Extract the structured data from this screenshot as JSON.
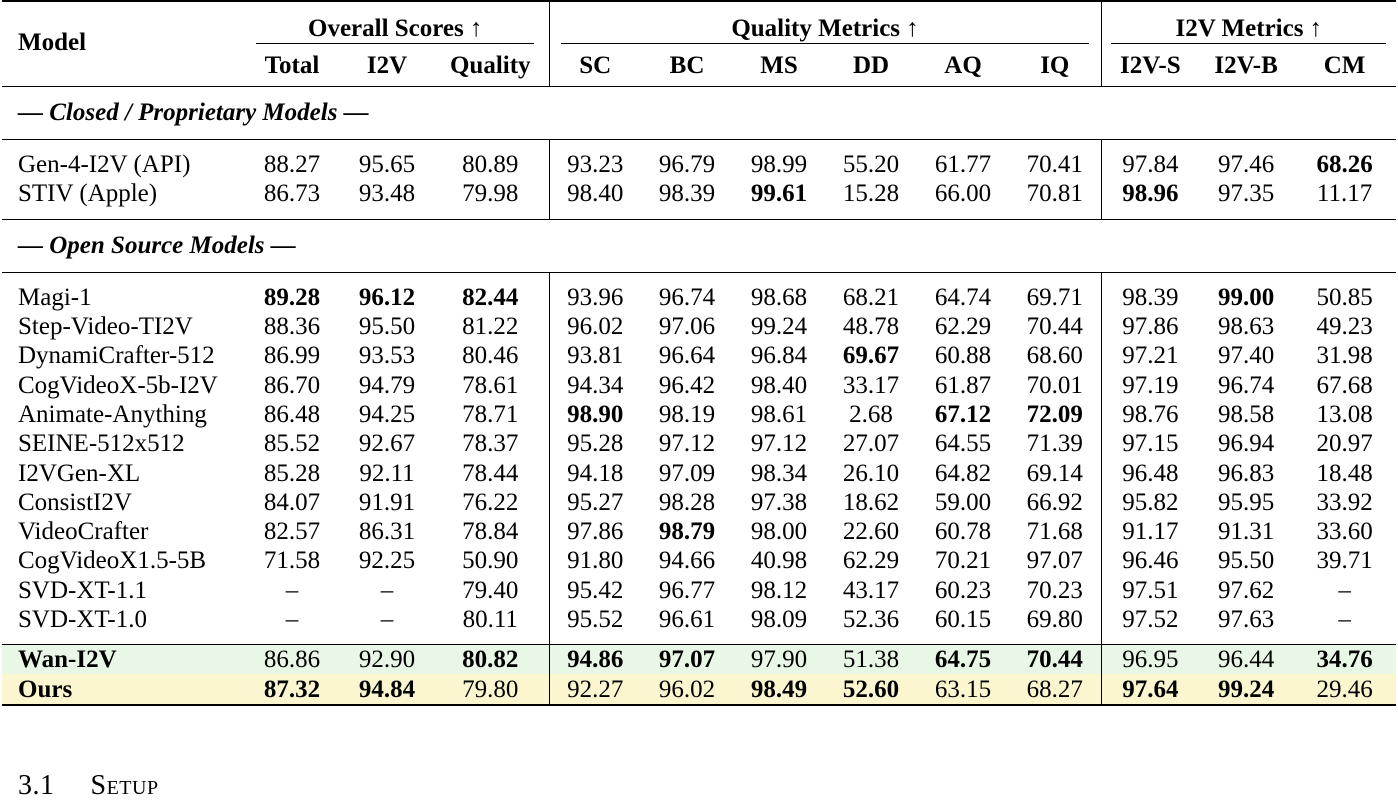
{
  "table": {
    "model_header": "Model",
    "groups": [
      {
        "label": "Overall Scores ↑"
      },
      {
        "label": "Quality Metrics ↑"
      },
      {
        "label": "I2V Metrics ↑"
      }
    ],
    "columns": [
      "Total",
      "I2V",
      "Quality",
      "SC",
      "BC",
      "MS",
      "DD",
      "AQ",
      "IQ",
      "I2V-S",
      "I2V-B",
      "CM"
    ],
    "sections": [
      {
        "title": "— Closed / Proprietary Models —",
        "rows": [
          {
            "model": "Gen-4-I2V (API)",
            "values": [
              "88.27",
              "95.65",
              "80.89",
              "93.23",
              "96.79",
              "98.99",
              "55.20",
              "61.77",
              "70.41",
              "97.84",
              "97.46",
              "68.26"
            ]
          },
          {
            "model": "STIV (Apple)",
            "values": [
              "86.73",
              "93.48",
              "79.98",
              "98.40",
              "98.39",
              "99.61",
              "15.28",
              "66.00",
              "70.81",
              "98.96",
              "97.35",
              "11.17"
            ]
          }
        ]
      },
      {
        "title": "— Open Source Models —",
        "rows": [
          {
            "model": "Magi-1",
            "values": [
              "89.28",
              "96.12",
              "82.44",
              "93.96",
              "96.74",
              "98.68",
              "68.21",
              "64.74",
              "69.71",
              "98.39",
              "99.00",
              "50.85"
            ]
          },
          {
            "model": "Step-Video-TI2V",
            "values": [
              "88.36",
              "95.50",
              "81.22",
              "96.02",
              "97.06",
              "99.24",
              "48.78",
              "62.29",
              "70.44",
              "97.86",
              "98.63",
              "49.23"
            ]
          },
          {
            "model": "DynamiCrafter-512",
            "values": [
              "86.99",
              "93.53",
              "80.46",
              "93.81",
              "96.64",
              "96.84",
              "69.67",
              "60.88",
              "68.60",
              "97.21",
              "97.40",
              "31.98"
            ]
          },
          {
            "model": "CogVideoX-5b-I2V",
            "values": [
              "86.70",
              "94.79",
              "78.61",
              "94.34",
              "96.42",
              "98.40",
              "33.17",
              "61.87",
              "70.01",
              "97.19",
              "96.74",
              "67.68"
            ]
          },
          {
            "model": "Animate-Anything",
            "values": [
              "86.48",
              "94.25",
              "78.71",
              "98.90",
              "98.19",
              "98.61",
              "2.68",
              "67.12",
              "72.09",
              "98.76",
              "98.58",
              "13.08"
            ]
          },
          {
            "model": "SEINE-512x512",
            "values": [
              "85.52",
              "92.67",
              "78.37",
              "95.28",
              "97.12",
              "97.12",
              "27.07",
              "64.55",
              "71.39",
              "97.15",
              "96.94",
              "20.97"
            ]
          },
          {
            "model": "I2VGen-XL",
            "values": [
              "85.28",
              "92.11",
              "78.44",
              "94.18",
              "97.09",
              "98.34",
              "26.10",
              "64.82",
              "69.14",
              "96.48",
              "96.83",
              "18.48"
            ]
          },
          {
            "model": "ConsistI2V",
            "values": [
              "84.07",
              "91.91",
              "76.22",
              "95.27",
              "98.28",
              "97.38",
              "18.62",
              "59.00",
              "66.92",
              "95.82",
              "95.95",
              "33.92"
            ]
          },
          {
            "model": "VideoCrafter",
            "values": [
              "82.57",
              "86.31",
              "78.84",
              "97.86",
              "98.79",
              "98.00",
              "22.60",
              "60.78",
              "71.68",
              "91.17",
              "91.31",
              "33.60"
            ]
          },
          {
            "model": "CogVideoX1.5-5B",
            "values": [
              "71.58",
              "92.25",
              "50.90",
              "91.80",
              "94.66",
              "40.98",
              "62.29",
              "70.21",
              "97.07",
              "96.46",
              "95.50",
              "39.71"
            ]
          },
          {
            "model": "SVD-XT-1.1",
            "values": [
              "–",
              "–",
              "79.40",
              "95.42",
              "96.77",
              "98.12",
              "43.17",
              "60.23",
              "70.23",
              "97.51",
              "97.62",
              "–"
            ]
          },
          {
            "model": "SVD-XT-1.0",
            "values": [
              "–",
              "–",
              "80.11",
              "95.52",
              "96.61",
              "98.09",
              "52.36",
              "60.15",
              "69.80",
              "97.52",
              "97.63",
              "–"
            ]
          }
        ]
      }
    ],
    "highlight_rows": [
      {
        "model": "Wan-I2V",
        "values": [
          "86.86",
          "92.90",
          "80.82",
          "94.86",
          "97.07",
          "97.90",
          "51.38",
          "64.75",
          "70.44",
          "96.95",
          "96.44",
          "34.76"
        ],
        "background": "#e9f8e6"
      },
      {
        "model": "Ours",
        "values": [
          "87.32",
          "94.84",
          "79.80",
          "92.27",
          "96.02",
          "98.49",
          "52.60",
          "63.15",
          "68.27",
          "97.64",
          "99.24",
          "29.46"
        ],
        "background": "#fbf5d0"
      }
    ]
  },
  "section_heading": {
    "number": "3.1",
    "title": "Setup"
  }
}
